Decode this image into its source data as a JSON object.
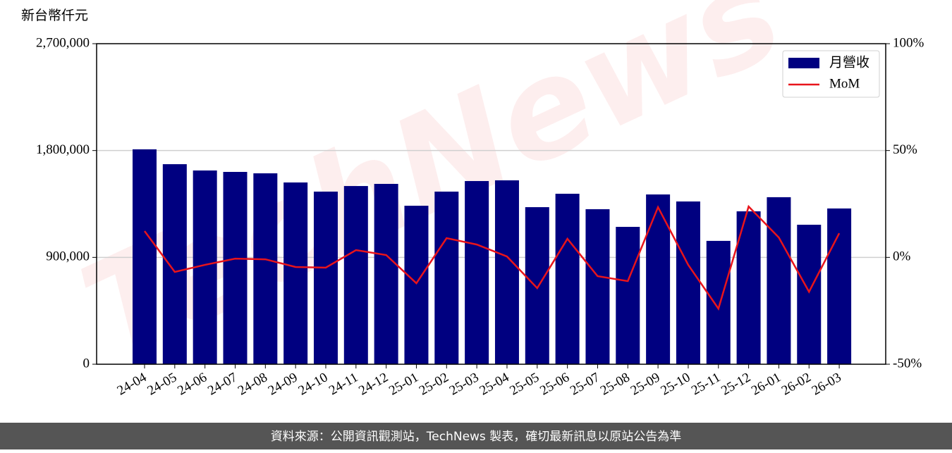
{
  "chart_data": {
    "type": "bar",
    "y_label": "新台幣仟元",
    "watermark": "TechNews",
    "categories": [
      "24-04",
      "24-05",
      "24-06",
      "24-07",
      "24-08",
      "24-09",
      "24-10",
      "24-11",
      "24-12",
      "25-01",
      "25-02",
      "25-03",
      "25-04",
      "25-05",
      "25-06",
      "25-07",
      "25-08",
      "25-09",
      "25-10",
      "25-11",
      "25-12",
      "26-01",
      "26-02",
      "26-03"
    ],
    "series": [
      {
        "name": "月營收",
        "type": "bar",
        "color": "#000080",
        "values": [
          1810000,
          1685000,
          1632000,
          1620000,
          1608000,
          1531000,
          1454000,
          1501000,
          1519000,
          1335000,
          1454000,
          1543000,
          1549000,
          1323000,
          1436000,
          1306000,
          1157000,
          1430000,
          1371000,
          1039000,
          1288000,
          1407000,
          1175000,
          1312000
        ]
      },
      {
        "name": "MoM",
        "type": "line",
        "axis": "y2",
        "color": "#e8141b",
        "values": [
          12.3,
          -6.8,
          -3.5,
          -0.6,
          -0.9,
          -4.5,
          -4.8,
          3.4,
          1.1,
          -12.1,
          9.0,
          6.0,
          0.4,
          -14.4,
          8.7,
          -8.8,
          -11.1,
          23.5,
          -3.5,
          -24.0,
          23.8,
          9.3,
          -16.1,
          11.3
        ]
      }
    ],
    "ylim": [
      0,
      2700000
    ],
    "yticks": [
      0,
      {
        "value": 900000,
        "label": "900,000"
      },
      {
        "value": 1800000,
        "label": "1,800,000"
      },
      {
        "value": 2700000,
        "label": "2,700,000"
      }
    ],
    "y2lim": [
      -50,
      100
    ],
    "y2ticks": [
      {
        "value": -50,
        "label": "-50%"
      },
      {
        "value": 0,
        "label": "0%"
      },
      {
        "value": 50,
        "label": "50%"
      },
      {
        "value": 100,
        "label": "100%"
      }
    ],
    "grid": true,
    "legend": "upper right"
  },
  "footer": "資料來源：公開資訊觀測站，TechNews 製表，確切最新訊息以原站公告為準"
}
